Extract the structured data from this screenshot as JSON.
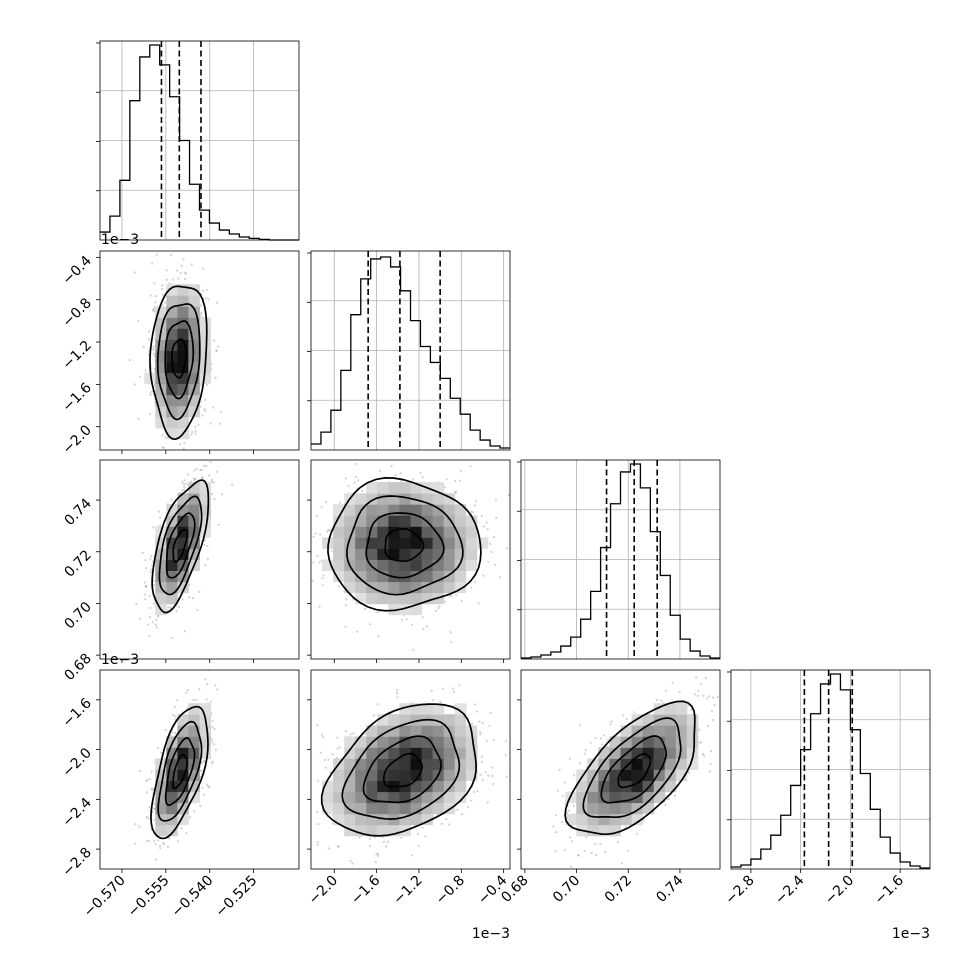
{
  "chart_data": {
    "type": "corner",
    "parameters": [
      {
        "range": [
          -0.5775,
          -0.5095
        ],
        "ticks": [
          -0.57,
          -0.555,
          -0.54,
          -0.525
        ],
        "tick_labels": [
          "−0.570",
          "−0.555",
          "−0.540",
          "−0.525"
        ],
        "quantiles": [
          -0.5565,
          -0.5504,
          -0.543
        ],
        "histogram": [
          0.04,
          0.12,
          0.3,
          0.7,
          0.92,
          0.98,
          0.88,
          0.72,
          0.5,
          0.28,
          0.15,
          0.085,
          0.05,
          0.03,
          0.015,
          0.008,
          0.003,
          0,
          0,
          0
        ]
      },
      {
        "range": [
          -2.22,
          -0.34
        ],
        "ticks": [
          -2.0,
          -1.6,
          -1.2,
          -0.8,
          -0.4
        ],
        "tick_labels": [
          "−2.0",
          "−1.6",
          "−1.2",
          "−0.8",
          "−0.4"
        ],
        "multiplier": "1e−3",
        "quantiles": [
          -1.68,
          -1.38,
          -1.0
        ],
        "histogram": [
          0.03,
          0.09,
          0.2,
          0.4,
          0.68,
          0.86,
          0.96,
          0.97,
          0.92,
          0.8,
          0.65,
          0.52,
          0.44,
          0.36,
          0.26,
          0.18,
          0.1,
          0.05,
          0.02,
          0.01
        ]
      },
      {
        "range": [
          0.6785,
          0.7555
        ],
        "ticks": [
          0.68,
          0.7,
          0.72,
          0.74
        ],
        "tick_labels": [
          "0.68",
          "0.70",
          "0.72",
          "0.74"
        ],
        "quantiles": [
          0.7116,
          0.7223,
          0.7312
        ],
        "histogram": [
          0.005,
          0.01,
          0.02,
          0.035,
          0.065,
          0.11,
          0.2,
          0.34,
          0.56,
          0.78,
          0.94,
          0.98,
          0.86,
          0.64,
          0.42,
          0.22,
          0.1,
          0.04,
          0.015,
          0.005
        ]
      },
      {
        "range": [
          -2.96,
          -1.36
        ],
        "ticks": [
          -2.8,
          -2.4,
          -2.0,
          -1.6
        ],
        "tick_labels": [
          "−2.8",
          "−2.4",
          "−2.0",
          "−1.6"
        ],
        "multiplier": "1e−3",
        "quantiles": [
          -2.37,
          -2.175,
          -1.985
        ],
        "histogram": [
          0.01,
          0.02,
          0.05,
          0.1,
          0.17,
          0.27,
          0.42,
          0.6,
          0.78,
          0.93,
          0.98,
          0.9,
          0.7,
          0.48,
          0.3,
          0.16,
          0.08,
          0.035,
          0.015,
          0.005
        ]
      }
    ],
    "pairs": [
      {
        "x": 0,
        "y": 1,
        "mean": [
          -0.5505,
          -1.35
        ],
        "sd": [
          0.0048,
          0.36
        ],
        "corr": 0.12
      },
      {
        "x": 0,
        "y": 2,
        "mean": [
          -0.5502,
          0.7225
        ],
        "sd": [
          0.0048,
          0.0125
        ],
        "corr": 0.62
      },
      {
        "x": 1,
        "y": 2,
        "mean": [
          -1.35,
          0.7225
        ],
        "sd": [
          0.36,
          0.0125
        ],
        "corr": 0.0
      },
      {
        "x": 0,
        "y": 3,
        "mean": [
          -0.5502,
          -2.175
        ],
        "sd": [
          0.0048,
          0.265
        ],
        "corr": 0.6
      },
      {
        "x": 1,
        "y": 3,
        "mean": [
          -1.35,
          -2.175
        ],
        "sd": [
          0.36,
          0.265
        ],
        "corr": 0.35
      },
      {
        "x": 2,
        "y": 3,
        "mean": [
          0.7225,
          -2.175
        ],
        "sd": [
          0.0125,
          0.265
        ],
        "corr": 0.62
      }
    ],
    "grid": true,
    "quantile_line_style": "dashed"
  }
}
